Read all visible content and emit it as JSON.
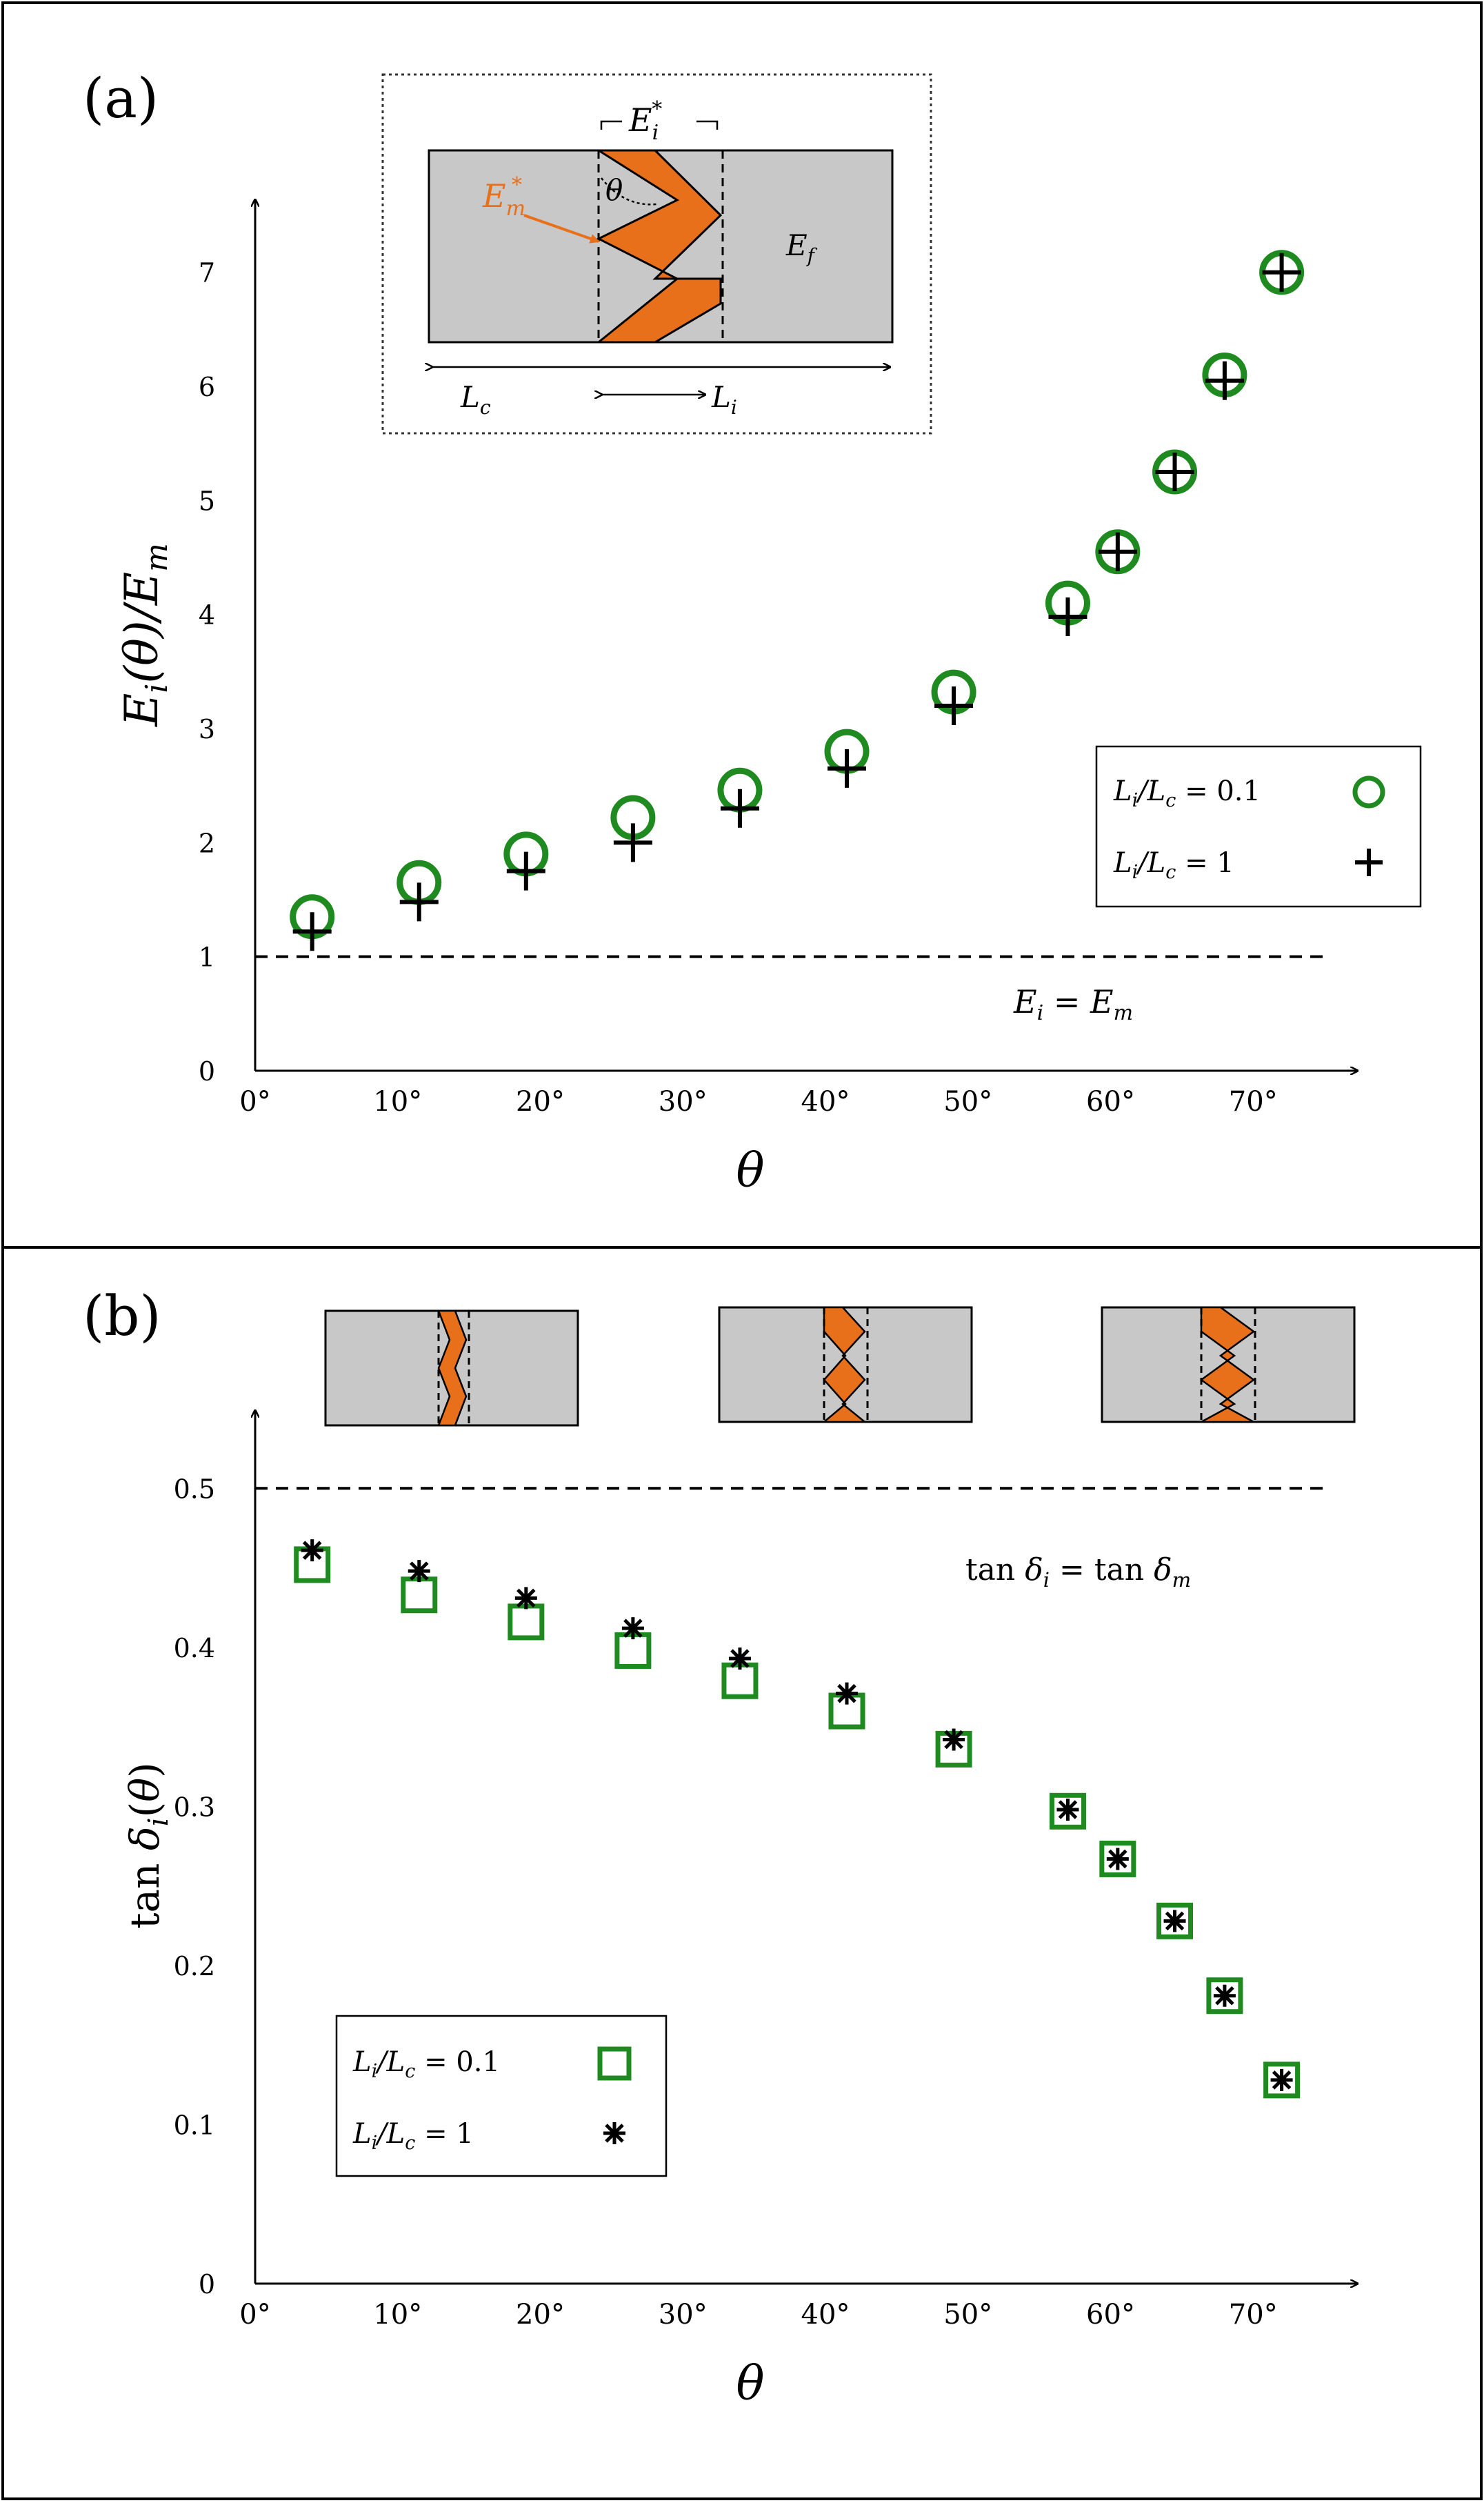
{
  "chart_data": [
    {
      "panel_label": "(a)",
      "type": "scatter",
      "xlabel": "θ",
      "ylabel": "E_i(θ)/E_m",
      "x_tick_labels": [
        "0°",
        "10°",
        "20°",
        "30°",
        "40°",
        "50°",
        "60°",
        "70°"
      ],
      "y_tick_labels": [
        "0",
        "1",
        "2",
        "3",
        "4",
        "5",
        "6",
        "7"
      ],
      "xlim": [
        0,
        80
      ],
      "ylim": [
        0,
        7.7
      ],
      "x": [
        4,
        11.5,
        19,
        26.5,
        34,
        41.5,
        49,
        57,
        60.5,
        64.5,
        68,
        72
      ],
      "series": [
        {
          "name": "L_i/L_c = 0.1",
          "marker": "circle",
          "color": "#1f8a1f",
          "values": [
            1.35,
            1.65,
            1.9,
            2.22,
            2.46,
            2.8,
            3.32,
            4.1,
            4.55,
            5.25,
            6.1,
            7.0
          ]
        },
        {
          "name": "L_i/L_c = 1",
          "marker": "plus",
          "color": "#000000",
          "values": [
            1.22,
            1.48,
            1.75,
            2.0,
            2.3,
            2.65,
            3.2,
            3.98,
            4.55,
            5.25,
            6.05,
            7.0
          ]
        }
      ],
      "reference_line": {
        "y": 1,
        "label": "E_i = E_m"
      },
      "legend": [
        {
          "label_main": "L",
          "label_sub": "i",
          "label_mid": "/L",
          "label_sub2": "c",
          "label_end": " = 0.1"
        },
        {
          "label_main": "L",
          "label_sub": "i",
          "label_mid": "/L",
          "label_sub2": "c",
          "label_end": " = 1"
        }
      ],
      "inset_labels": {
        "Ei_star": "E",
        "Ei_star_sub": "i",
        "Ei_star_sup": "*",
        "Em_star": "E",
        "Em_star_sub": "m",
        "Em_star_sup": "*",
        "theta": "θ",
        "Ef": "E",
        "Ef_sub": "f",
        "Lc": "L",
        "Lc_sub": "c",
        "Li": "L",
        "Li_sub": "i"
      }
    },
    {
      "panel_label": "(b)",
      "type": "scatter",
      "xlabel": "θ",
      "ylabel": "tan δ_i(θ)",
      "x_tick_labels": [
        "0°",
        "10°",
        "20°",
        "30°",
        "40°",
        "50°",
        "60°",
        "70°"
      ],
      "y_tick_labels": [
        "0",
        "0.1",
        "0.2",
        "0.3",
        "0.4",
        "0.5"
      ],
      "xlim": [
        0,
        80
      ],
      "ylim": [
        0,
        0.55
      ],
      "x": [
        4,
        11.5,
        19,
        26.5,
        34,
        41.5,
        49,
        57,
        60.5,
        64.5,
        68,
        72
      ],
      "series": [
        {
          "name": "L_i/L_c = 0.1",
          "marker": "square",
          "color": "#1f8a1f",
          "values": [
            0.452,
            0.433,
            0.416,
            0.398,
            0.379,
            0.36,
            0.336,
            0.297,
            0.267,
            0.228,
            0.181,
            0.128
          ]
        },
        {
          "name": "L_i/L_c = 1",
          "marker": "asterisk",
          "color": "#000000",
          "values": [
            0.461,
            0.448,
            0.431,
            0.412,
            0.393,
            0.371,
            0.342,
            0.298,
            0.267,
            0.228,
            0.181,
            0.128
          ]
        }
      ],
      "reference_line": {
        "y": 0.5,
        "label": "tan δ_i = tan δ_m"
      },
      "legend": [
        {
          "label_main": "L",
          "label_sub": "i",
          "label_mid": "/L",
          "label_sub2": "c",
          "label_end": " = 0.1"
        },
        {
          "label_main": "L",
          "label_sub": "i",
          "label_mid": "/L",
          "label_sub2": "c",
          "label_end": " = 1"
        }
      ],
      "insets": [
        {
          "zigzag_teeth": 2,
          "amplitude": "small"
        },
        {
          "zigzag_teeth": 3,
          "amplitude": "medium"
        },
        {
          "zigzag_teeth": 3,
          "amplitude": "large"
        }
      ]
    }
  ],
  "colors": {
    "green": "#1f8a1f",
    "orange": "#e8701a",
    "gray_fill": "#c8c8c8"
  }
}
